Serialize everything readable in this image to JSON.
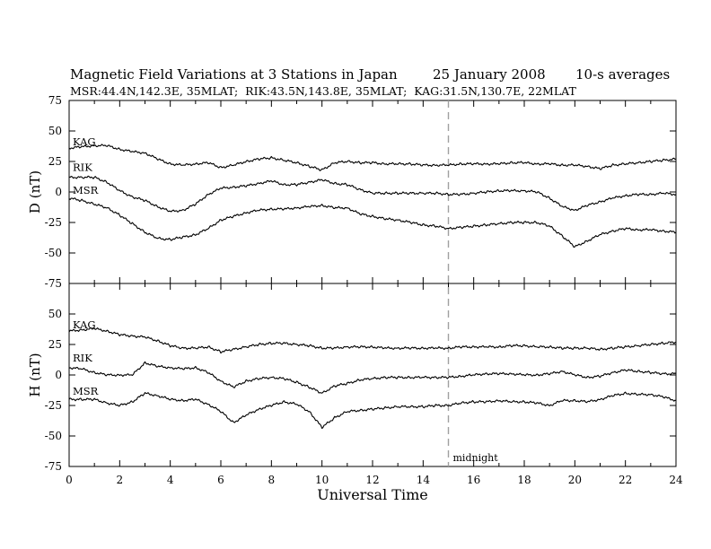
{
  "chart_data": {
    "type": "line",
    "title": "Magnetic Field Variations at 3 Stations in Japan",
    "date": "25 January 2008",
    "averaging": "10-s averages",
    "subtitle": "MSR:44.4N,142.3E, 35MLAT;  RIK:43.5N,143.8E, 35MLAT;  KAG:31.5N,130.7E, 22MLAT",
    "xlabel": "Universal Time",
    "xlim": [
      0,
      24
    ],
    "xticks": [
      0,
      2,
      4,
      6,
      8,
      10,
      12,
      14,
      16,
      18,
      20,
      22,
      24
    ],
    "x": [
      0,
      0.5,
      1,
      1.5,
      2,
      2.5,
      3,
      3.5,
      4,
      4.5,
      5,
      5.5,
      6,
      6.5,
      7,
      7.5,
      8,
      8.5,
      9,
      9.5,
      10,
      10.5,
      11,
      11.5,
      12,
      12.5,
      13,
      13.5,
      14,
      14.5,
      15,
      15.5,
      16,
      16.5,
      17,
      17.5,
      18,
      18.5,
      19,
      19.5,
      20,
      20.5,
      21,
      21.5,
      22,
      22.5,
      23,
      23.5,
      24
    ],
    "marker": {
      "x": 15,
      "label": "midnight",
      "style": "dashed",
      "color": "#a0a0a0"
    },
    "panels": [
      {
        "ylabel": "D (nT)",
        "ylim": [
          -75,
          75
        ],
        "yticks": [
          75,
          50,
          25,
          0,
          -25,
          -50,
          -75
        ],
        "series": [
          {
            "name": "KAG",
            "values": [
              36,
              37,
              38,
              38,
              35,
              33,
              32,
              27,
              23,
              22,
              23,
              24,
              20,
              22,
              25,
              27,
              28,
              26,
              24,
              21,
              18,
              24,
              25,
              24,
              24,
              23,
              23,
              23,
              22,
              22,
              22,
              23,
              23,
              23,
              23,
              24,
              24,
              23,
              23,
              22,
              22,
              21,
              19,
              22,
              23,
              24,
              25,
              26,
              27
            ]
          },
          {
            "name": "RIK",
            "values": [
              12,
              12,
              12,
              8,
              1,
              -4,
              -7,
              -12,
              -16,
              -15,
              -10,
              -2,
              3,
              4,
              5,
              7,
              9,
              6,
              6,
              8,
              10,
              7,
              6,
              2,
              -1,
              -1,
              -1,
              -1,
              -1,
              -1,
              -2,
              -2,
              -1,
              0,
              1,
              1,
              1,
              0,
              -5,
              -12,
              -15,
              -11,
              -8,
              -5,
              -3,
              -2,
              -2,
              -1,
              -2
            ]
          },
          {
            "name": "MSR",
            "values": [
              -5,
              -7,
              -10,
              -13,
              -19,
              -26,
              -33,
              -38,
              -39,
              -37,
              -35,
              -30,
              -23,
              -20,
              -17,
              -15,
              -14,
              -14,
              -13,
              -12,
              -11,
              -13,
              -13,
              -18,
              -20,
              -22,
              -23,
              -25,
              -27,
              -28,
              -30,
              -29,
              -28,
              -27,
              -26,
              -25,
              -25,
              -25,
              -28,
              -36,
              -45,
              -40,
              -35,
              -32,
              -30,
              -31,
              -31,
              -32,
              -33
            ]
          }
        ]
      },
      {
        "ylabel": "H (nT)",
        "ylim": [
          -75,
          75
        ],
        "yticks": [
          75,
          50,
          25,
          0,
          -25,
          -50,
          -75
        ],
        "series": [
          {
            "name": "KAG",
            "values": [
              36,
              37,
              38,
              36,
              33,
              32,
              31,
              28,
              24,
              22,
              22,
              23,
              19,
              21,
              23,
              25,
              26,
              26,
              25,
              24,
              22,
              22,
              23,
              23,
              23,
              22,
              22,
              22,
              22,
              22,
              22,
              23,
              23,
              23,
              23,
              24,
              24,
              23,
              23,
              22,
              22,
              22,
              21,
              22,
              23,
              24,
              25,
              26,
              27
            ]
          },
          {
            "name": "RIK",
            "values": [
              6,
              5,
              2,
              0,
              0,
              0,
              10,
              7,
              6,
              5,
              6,
              2,
              -5,
              -10,
              -5,
              -3,
              -2,
              -3,
              -6,
              -10,
              -15,
              -9,
              -7,
              -4,
              -3,
              -2,
              -2,
              -2,
              -2,
              -2,
              -2,
              -1,
              0,
              1,
              1,
              1,
              0,
              0,
              1,
              3,
              0,
              -2,
              -1,
              2,
              4,
              3,
              2,
              1,
              1
            ]
          },
          {
            "name": "MSR",
            "values": [
              -20,
              -20,
              -20,
              -23,
              -25,
              -22,
              -15,
              -17,
              -20,
              -21,
              -20,
              -24,
              -30,
              -39,
              -33,
              -28,
              -25,
              -22,
              -24,
              -30,
              -43,
              -35,
              -30,
              -29,
              -28,
              -27,
              -26,
              -26,
              -26,
              -25,
              -25,
              -23,
              -22,
              -22,
              -21,
              -22,
              -22,
              -23,
              -25,
              -21,
              -21,
              -22,
              -20,
              -17,
              -15,
              -16,
              -16,
              -18,
              -21
            ]
          }
        ]
      }
    ]
  }
}
